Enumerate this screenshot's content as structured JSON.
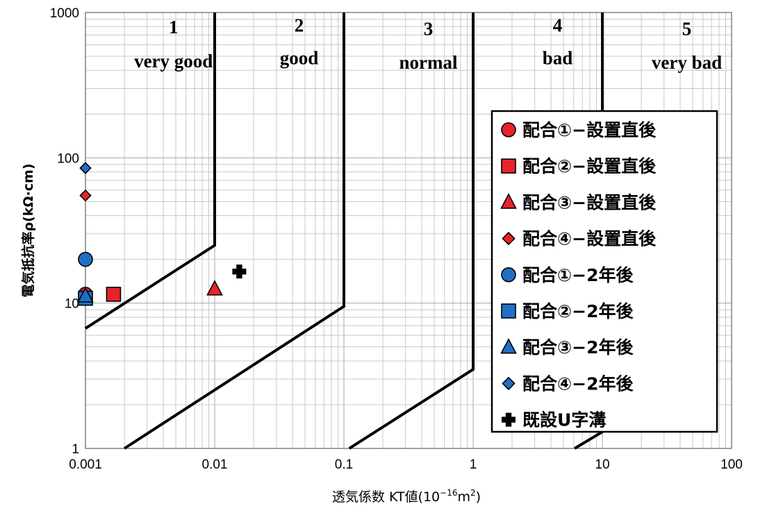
{
  "chart_data": {
    "type": "scatter",
    "x_scale": "log",
    "y_scale": "log",
    "xlim": [
      0.001,
      100
    ],
    "ylim": [
      1,
      1000
    ],
    "x_ticks": [
      "0.001",
      "0.01",
      "0.1",
      "1",
      "10",
      "100"
    ],
    "y_ticks": [
      "1",
      "10",
      "100",
      "1000"
    ],
    "xlabel": "透気係数 KT値(10",
    "xlabel_exp": "−16",
    "xlabel_unit": "m",
    "xlabel_unit_exp": "2",
    "xlabel_close": ")",
    "ylabel": "電気抵抗率ρ(kΩ·cm)",
    "grid": true,
    "classes": [
      {
        "number": "1",
        "label": "very good",
        "x": 0.0048,
        "y_num": 720,
        "y_lbl": 420
      },
      {
        "number": "2",
        "label": "good",
        "x": 0.045,
        "y_num": 740,
        "y_lbl": 440
      },
      {
        "number": "3",
        "label": "normal",
        "x": 0.45,
        "y_num": 700,
        "y_lbl": 410
      },
      {
        "number": "4",
        "label": "bad",
        "x": 4.5,
        "y_num": 740,
        "y_lbl": 440
      },
      {
        "number": "5",
        "label": "very bad",
        "x": 45,
        "y_num": 700,
        "y_lbl": 410
      }
    ],
    "boundaries": [
      [
        [
          0.001,
          6.7
        ],
        [
          0.01,
          25
        ],
        [
          0.01,
          1000
        ]
      ],
      [
        [
          0.002,
          1
        ],
        [
          0.1,
          9.5
        ],
        [
          0.1,
          1000
        ]
      ],
      [
        [
          0.11,
          1
        ],
        [
          1,
          3.5
        ],
        [
          1,
          1000
        ]
      ],
      [
        [
          6.1,
          1
        ],
        [
          10,
          1.3
        ],
        [
          10,
          1000
        ]
      ]
    ],
    "series": [
      {
        "name": "配合①−設置直後",
        "marker": "circle",
        "color": "#e8232a",
        "points": [
          [
            0.001,
            11.5
          ]
        ]
      },
      {
        "name": "配合②−設置直後",
        "marker": "square",
        "color": "#e8232a",
        "points": [
          [
            0.00165,
            11.5
          ]
        ]
      },
      {
        "name": "配合③−設置直後",
        "marker": "triangle",
        "color": "#e8232a",
        "points": [
          [
            0.01,
            12.5
          ]
        ]
      },
      {
        "name": "配合④−設置直後",
        "marker": "diamond",
        "color": "#e8232a",
        "points": [
          [
            0.001,
            55
          ]
        ]
      },
      {
        "name": "配合①−2年後",
        "marker": "circle",
        "color": "#1f6fc6",
        "points": [
          [
            0.001,
            20
          ]
        ]
      },
      {
        "name": "配合②−2年後",
        "marker": "square",
        "color": "#1f6fc6",
        "points": [
          [
            0.001,
            10.8
          ]
        ]
      },
      {
        "name": "配合③−2年後",
        "marker": "triangle",
        "color": "#1f6fc6",
        "points": [
          [
            0.001,
            11.2
          ]
        ]
      },
      {
        "name": "配合④−2年後",
        "marker": "diamond",
        "color": "#1f6fc6",
        "points": [
          [
            0.001,
            85
          ]
        ]
      },
      {
        "name": "既設U字溝",
        "marker": "plus",
        "color": "#000000",
        "points": [
          [
            0.0155,
            16.5
          ]
        ]
      }
    ],
    "legend_position": "right"
  }
}
